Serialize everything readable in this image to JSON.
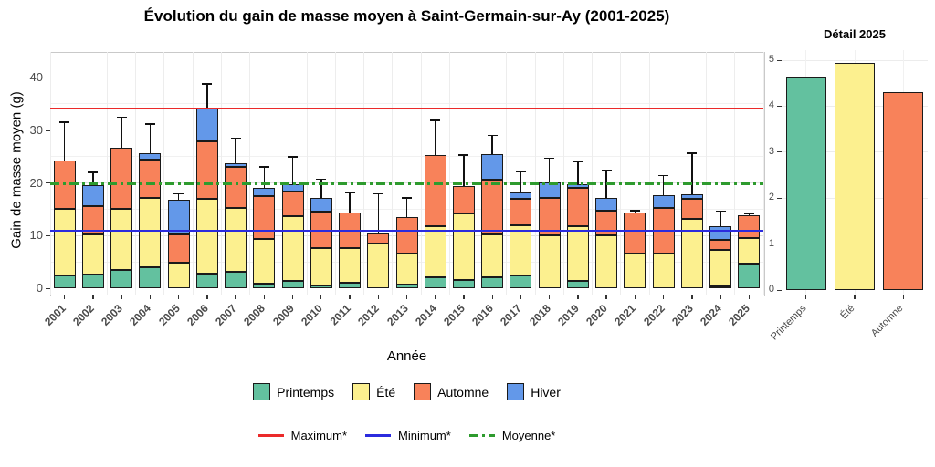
{
  "figure": {
    "title": "Évolution du gain de masse moyen à Saint-Germain-sur-Ay (2001-2025)"
  },
  "chart_data": [
    {
      "type": "bar",
      "stacked": true,
      "title": "Évolution du gain de masse moyen à Saint-Germain-sur-Ay (2001-2025)",
      "xlabel": "Année",
      "ylabel": "Gain de masse moyen (g)",
      "ylim": [
        0,
        44.8
      ],
      "yticks": [
        0,
        10,
        20,
        30,
        40
      ],
      "yticks_minor": [
        5,
        15,
        25,
        35
      ],
      "grid": true,
      "legend_position": "bottom",
      "categories": [
        "2001",
        "2002",
        "2003",
        "2004",
        "2005",
        "2006",
        "2007",
        "2008",
        "2009",
        "2010",
        "2011",
        "2012",
        "2013",
        "2014",
        "2015",
        "2016",
        "2017",
        "2018",
        "2019",
        "2020",
        "2021",
        "2022",
        "2023",
        "2024",
        "2025"
      ],
      "series": [
        {
          "name": "Printemps",
          "color": "#63C19F",
          "values": [
            2.5,
            2.6,
            3.4,
            4.0,
            0,
            2.7,
            3.2,
            0.8,
            1.3,
            0.6,
            1.0,
            0,
            0.7,
            2.1,
            1.5,
            2.0,
            2.5,
            0,
            1.3,
            0,
            0,
            0,
            0,
            0.3,
            4.65
          ]
        },
        {
          "name": "Été",
          "color": "#FCF08F",
          "values": [
            12.5,
            7.7,
            11.6,
            13.2,
            4.8,
            14.2,
            12.0,
            8.6,
            12.4,
            7.0,
            6.7,
            8.5,
            5.8,
            9.6,
            12.7,
            8.3,
            9.5,
            10.0,
            10.4,
            10.0,
            6.5,
            6.5,
            13.2,
            7.0,
            4.95
          ]
        },
        {
          "name": "Automne",
          "color": "#F8825A",
          "values": [
            9.3,
            5.2,
            11.7,
            7.2,
            5.5,
            10.9,
            7.8,
            8.1,
            4.7,
            7.0,
            6.7,
            1.9,
            7.0,
            13.6,
            5.2,
            10.3,
            4.9,
            7.2,
            7.4,
            4.8,
            7.8,
            8.7,
            3.8,
            1.8,
            4.3
          ]
        },
        {
          "name": "Hiver",
          "color": "#6398E9",
          "values": [
            0,
            4.1,
            0,
            1.3,
            6.5,
            6.3,
            0.7,
            1.6,
            1.4,
            2.6,
            0,
            0,
            0,
            0,
            0,
            4.9,
            1.3,
            2.9,
            0.7,
            2.3,
            0,
            2.5,
            0.8,
            2.6,
            0
          ]
        }
      ],
      "error_bar_tops": [
        31.5,
        22.0,
        32.5,
        31.2,
        17.9,
        38.8,
        28.5,
        23.0,
        24.9,
        20.7,
        18.1,
        17.9,
        17.1,
        31.9,
        25.3,
        29.0,
        22.1,
        24.7,
        24.0,
        22.3,
        14.7,
        21.4,
        25.6,
        14.6,
        14.2
      ],
      "ref_lines": [
        {
          "label": "Maximum*",
          "value": 34.1,
          "color": "#EB2A2A",
          "style": "solid"
        },
        {
          "label": "Minimum*",
          "value": 10.9,
          "color": "#2B2BDE",
          "style": "solid"
        },
        {
          "label": "Moyenne*",
          "value": 19.9,
          "color": "#2E9B2E",
          "style": "dashdot"
        }
      ]
    },
    {
      "type": "bar",
      "title": "Détail 2025",
      "xlabel": "",
      "ylabel": "",
      "ylim": [
        0,
        5.2
      ],
      "yticks": [
        0,
        1,
        2,
        3,
        4,
        5
      ],
      "grid": true,
      "categories": [
        "Printemps",
        "Été",
        "Automne"
      ],
      "values": [
        4.65,
        4.95,
        4.3
      ],
      "colors": [
        "#63C19F",
        "#FCF08F",
        "#F8825A"
      ]
    }
  ]
}
